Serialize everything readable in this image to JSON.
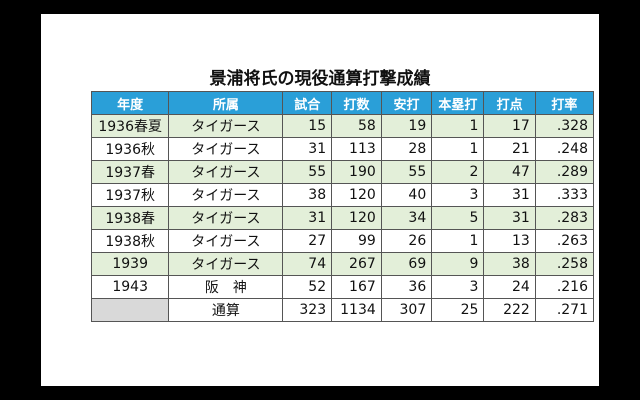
{
  "title": "景浦将氏の現役通算打撃成績",
  "headers": [
    "年度",
    "所属",
    "試合",
    "打数",
    "安打",
    "本塁打",
    "打点",
    "打率"
  ],
  "rows": [
    {
      "year": "1936春夏",
      "team": "タイガース",
      "games": "15",
      "at_bats": "58",
      "hits": "19",
      "home_runs": "1",
      "rbi": "17",
      "avg": ".328"
    },
    {
      "year": "1936秋",
      "team": "タイガース",
      "games": "31",
      "at_bats": "113",
      "hits": "28",
      "home_runs": "1",
      "rbi": "21",
      "avg": ".248"
    },
    {
      "year": "1937春",
      "team": "タイガース",
      "games": "55",
      "at_bats": "190",
      "hits": "55",
      "home_runs": "2",
      "rbi": "47",
      "avg": ".289"
    },
    {
      "year": "1937秋",
      "team": "タイガース",
      "games": "38",
      "at_bats": "120",
      "hits": "40",
      "home_runs": "3",
      "rbi": "31",
      "avg": ".333"
    },
    {
      "year": "1938春",
      "team": "タイガース",
      "games": "31",
      "at_bats": "120",
      "hits": "34",
      "home_runs": "5",
      "rbi": "31",
      "avg": ".283"
    },
    {
      "year": "1938秋",
      "team": "タイガース",
      "games": "27",
      "at_bats": "99",
      "hits": "26",
      "home_runs": "1",
      "rbi": "13",
      "avg": ".263"
    },
    {
      "year": "1939",
      "team": "タイガース",
      "games": "74",
      "at_bats": "267",
      "hits": "69",
      "home_runs": "9",
      "rbi": "38",
      "avg": ".258"
    },
    {
      "year": "1943",
      "team": "阪　神",
      "games": "52",
      "at_bats": "167",
      "hits": "36",
      "home_runs": "3",
      "rbi": "24",
      "avg": ".216"
    }
  ],
  "total": {
    "label": "通算",
    "games": "323",
    "at_bats": "1134",
    "hits": "307",
    "home_runs": "25",
    "rbi": "222",
    "avg": ".271"
  }
}
